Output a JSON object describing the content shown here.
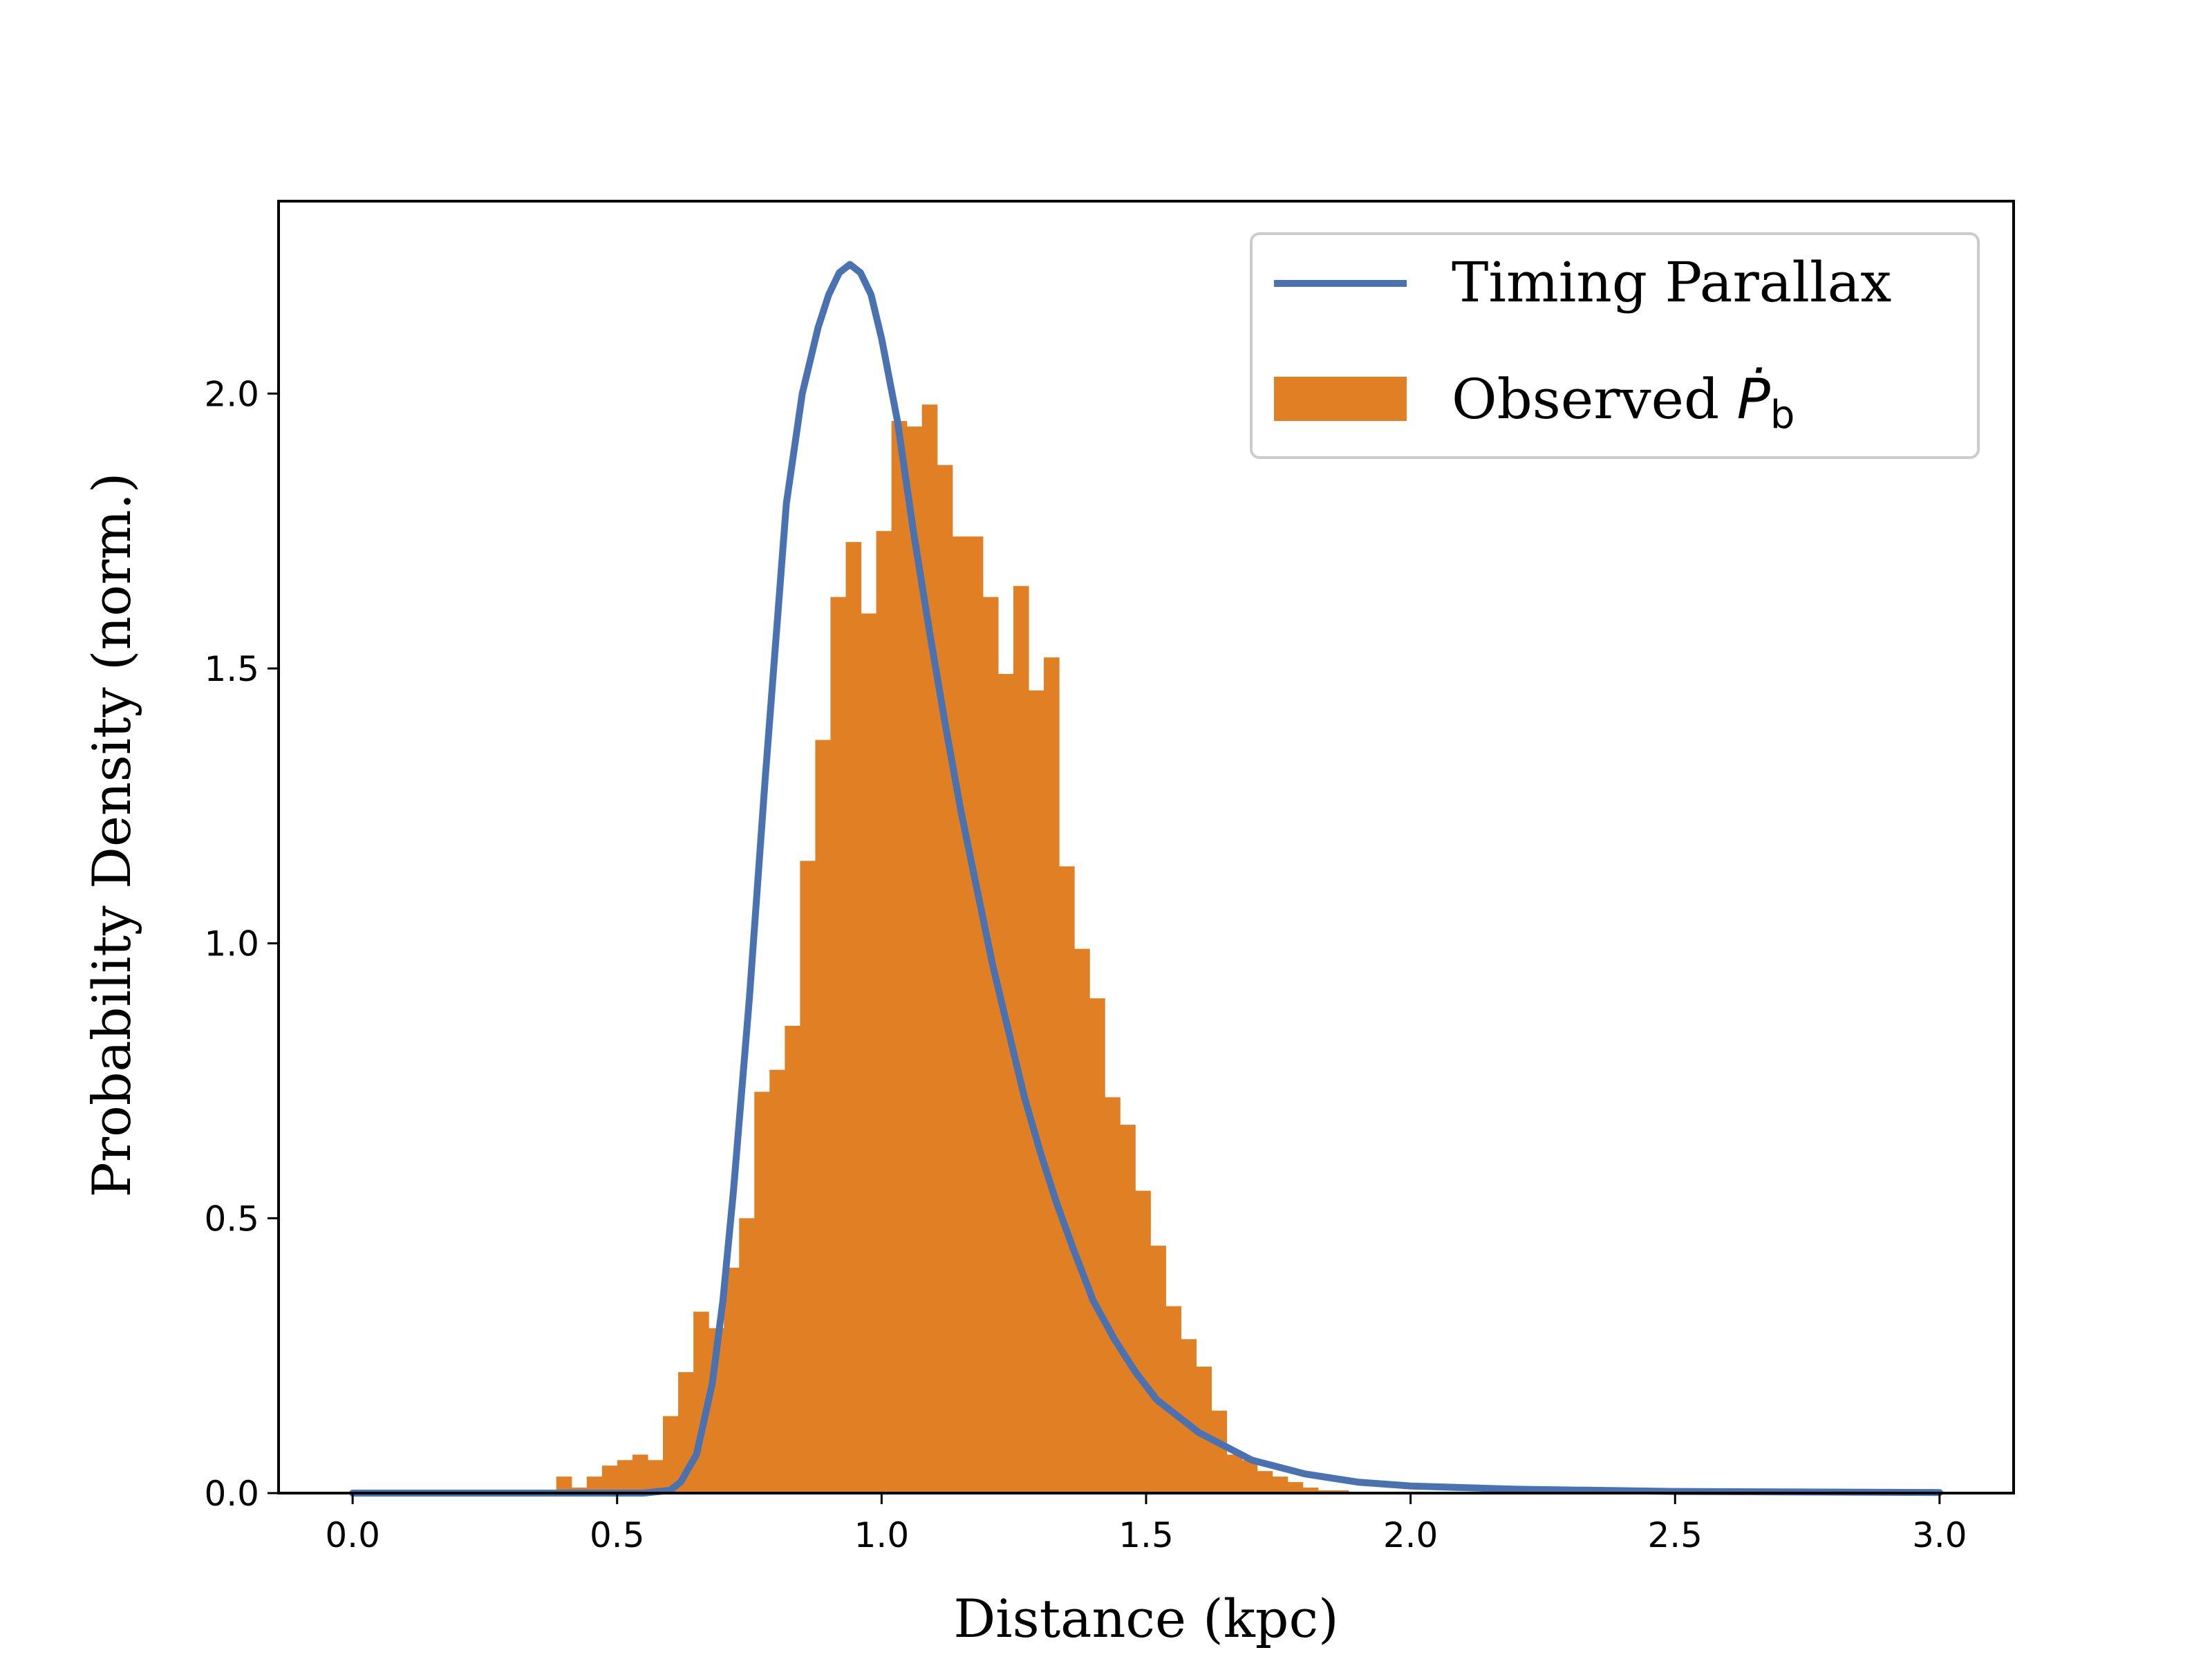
{
  "chart_data": {
    "type": "bar",
    "title": "",
    "xlabel": "Distance (kpc)",
    "ylabel": "Probability Density (norm.)",
    "xlim": [
      -0.14,
      3.14
    ],
    "ylim": [
      0,
      2.35
    ],
    "xticks": [
      0.0,
      0.5,
      1.0,
      1.5,
      2.0,
      2.5,
      3.0
    ],
    "xtick_labels": [
      "0.0",
      "0.5",
      "1.0",
      "1.5",
      "2.0",
      "2.5",
      "3.0"
    ],
    "yticks": [
      0.0,
      0.5,
      1.0,
      1.5,
      2.0
    ],
    "ytick_labels": [
      "0.0",
      "0.5",
      "1.0",
      "1.5",
      "2.0"
    ],
    "grid": false,
    "legend_position": "upper right",
    "legend": {
      "line_label": "Timing Parallax",
      "hist_label_main": "Observed ",
      "hist_label_symbol": "Ṗ",
      "hist_label_sub": "b"
    },
    "colors": {
      "line": "#4a72b0",
      "bars": "#e07f23",
      "axes": "#000000"
    },
    "histogram": {
      "name": "Observed Ṗb",
      "bin_width": 0.0288,
      "bin_edges_start": 0.385,
      "values": [
        0.03,
        0.01,
        0.03,
        0.05,
        0.06,
        0.07,
        0.06,
        0.14,
        0.22,
        0.33,
        0.3,
        0.41,
        0.5,
        0.73,
        0.77,
        0.85,
        1.15,
        1.37,
        1.63,
        1.73,
        1.6,
        1.75,
        1.95,
        1.94,
        1.98,
        1.87,
        1.74,
        1.74,
        1.63,
        1.49,
        1.65,
        1.46,
        1.52,
        1.14,
        0.99,
        0.9,
        0.72,
        0.67,
        0.55,
        0.45,
        0.34,
        0.28,
        0.23,
        0.15,
        0.07,
        0.06,
        0.04,
        0.03,
        0.02,
        0.01,
        0.005,
        0.005
      ]
    },
    "series": [
      {
        "name": "Timing Parallax",
        "type": "line",
        "x": [
          0.0,
          0.55,
          0.6,
          0.62,
          0.65,
          0.68,
          0.7,
          0.72,
          0.75,
          0.78,
          0.8,
          0.82,
          0.85,
          0.88,
          0.9,
          0.92,
          0.94,
          0.96,
          0.98,
          1.0,
          1.03,
          1.06,
          1.09,
          1.12,
          1.15,
          1.18,
          1.21,
          1.24,
          1.27,
          1.3,
          1.33,
          1.36,
          1.4,
          1.44,
          1.48,
          1.52,
          1.56,
          1.6,
          1.65,
          1.7,
          1.8,
          1.9,
          2.0,
          2.2,
          2.5,
          3.0
        ],
        "y": [
          0.0,
          0.0,
          0.005,
          0.02,
          0.07,
          0.2,
          0.35,
          0.55,
          0.9,
          1.3,
          1.55,
          1.8,
          2.0,
          2.12,
          2.18,
          2.22,
          2.235,
          2.22,
          2.18,
          2.1,
          1.95,
          1.75,
          1.57,
          1.4,
          1.24,
          1.1,
          0.96,
          0.84,
          0.72,
          0.62,
          0.53,
          0.45,
          0.35,
          0.28,
          0.22,
          0.17,
          0.14,
          0.11,
          0.085,
          0.06,
          0.035,
          0.02,
          0.013,
          0.007,
          0.003,
          0.001
        ]
      }
    ]
  }
}
